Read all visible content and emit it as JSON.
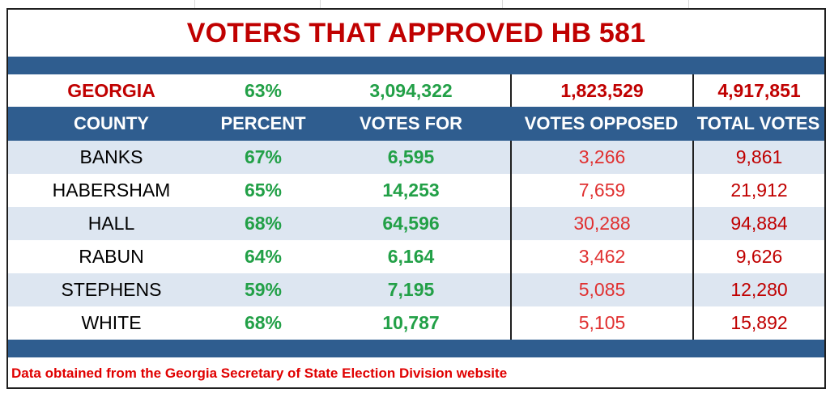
{
  "title": "VOTERS THAT APPROVED HB 581",
  "state_row": {
    "name": "GEORGIA",
    "percent": "63%",
    "votes_for": "3,094,322",
    "votes_opposed": "1,823,529",
    "total_votes": "4,917,851"
  },
  "headers": {
    "county": "COUNTY",
    "percent": "PERCENT",
    "votes_for": "VOTES FOR",
    "votes_opposed": "VOTES OPPOSED",
    "total_votes": "TOTAL VOTES"
  },
  "rows": [
    {
      "county": "BANKS",
      "percent": "67%",
      "votes_for": "6,595",
      "votes_opposed": "3,266",
      "total_votes": "9,861"
    },
    {
      "county": "HABERSHAM",
      "percent": "65%",
      "votes_for": "14,253",
      "votes_opposed": "7,659",
      "total_votes": "21,912"
    },
    {
      "county": "HALL",
      "percent": "68%",
      "votes_for": "64,596",
      "votes_opposed": "30,288",
      "total_votes": "94,884"
    },
    {
      "county": "RABUN",
      "percent": "64%",
      "votes_for": "6,164",
      "votes_opposed": "3,462",
      "total_votes": "9,626"
    },
    {
      "county": "STEPHENS",
      "percent": "59%",
      "votes_for": "7,195",
      "votes_opposed": "5,085",
      "total_votes": "12,280"
    },
    {
      "county": "WHITE",
      "percent": "68%",
      "votes_for": "10,787",
      "votes_opposed": "5,105",
      "total_votes": "15,892"
    }
  ],
  "footer": "Data obtained from the Georgia Secretary of State Election Division website",
  "colors": {
    "title_red": "#c00000",
    "band_blue": "#2f5d8f",
    "green": "#22a047",
    "opposed_red": "#e03030",
    "row_shade": "#dde6f1"
  }
}
